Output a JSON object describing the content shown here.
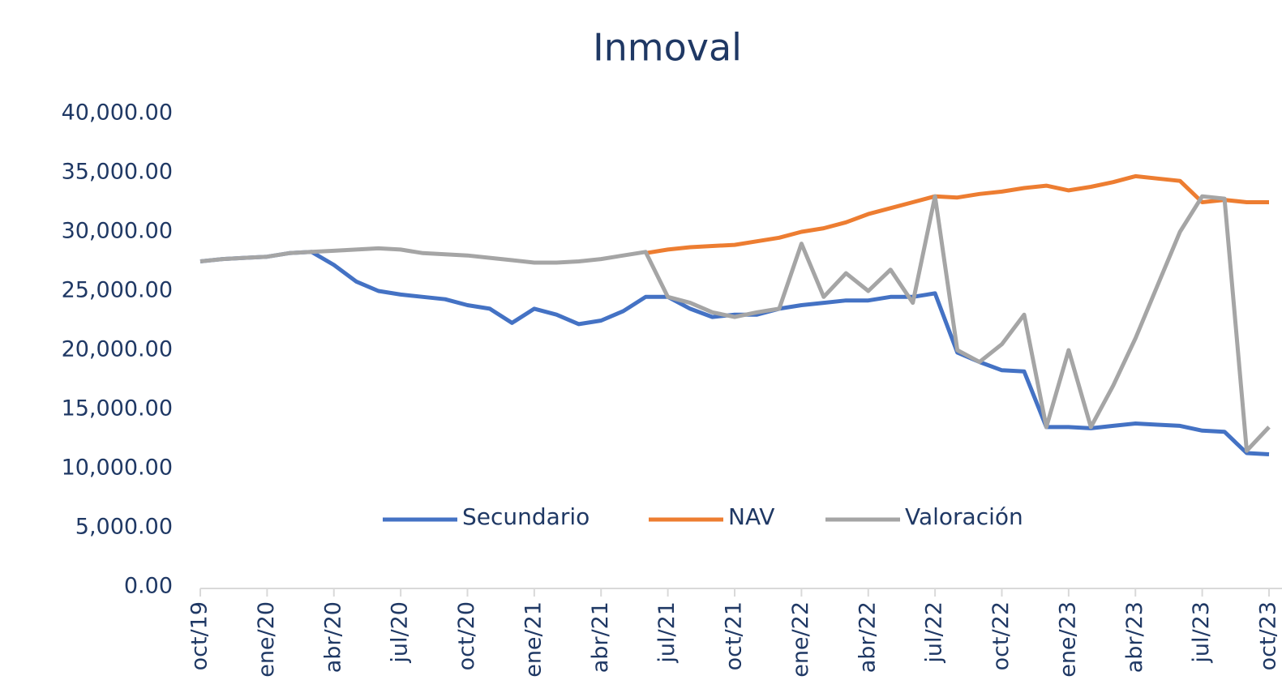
{
  "chart_data": {
    "type": "line",
    "title": "Inmoval",
    "categories": [
      "oct/19",
      null,
      null,
      "ene/20",
      null,
      null,
      "abr/20",
      null,
      null,
      "jul/20",
      null,
      null,
      "oct/20",
      null,
      null,
      "ene/21",
      null,
      null,
      "abr/21",
      null,
      null,
      "jul/21",
      null,
      null,
      "oct/21",
      null,
      null,
      "ene/22",
      null,
      null,
      "abr/22",
      null,
      null,
      "jul/22",
      null,
      null,
      "oct/22",
      null,
      null,
      "ene/23",
      null,
      null,
      "abr/23",
      null,
      null,
      "jul/23",
      null,
      null,
      "oct/23"
    ],
    "series": [
      {
        "name": "Secundario",
        "color": "#4472c4",
        "values": [
          27500,
          27700,
          27800,
          27900,
          28200,
          28300,
          27200,
          25800,
          25000,
          24700,
          24500,
          24300,
          23800,
          23500,
          22300,
          23500,
          23000,
          22200,
          22500,
          23300,
          24500,
          24500,
          23500,
          22800,
          23000,
          23000,
          23500,
          23800,
          24000,
          24200,
          24200,
          24500,
          24500,
          24800,
          19800,
          19000,
          18300,
          18200,
          13500,
          13500,
          13400,
          13600,
          13800,
          13700,
          13600,
          13200,
          13100,
          11300,
          11200
        ]
      },
      {
        "name": "NAV",
        "color": "#ed7d31",
        "values": [
          null,
          null,
          null,
          null,
          null,
          null,
          null,
          null,
          null,
          null,
          null,
          null,
          null,
          null,
          null,
          null,
          null,
          null,
          null,
          null,
          28200,
          28500,
          28700,
          28800,
          28900,
          29200,
          29500,
          30000,
          30300,
          30800,
          31500,
          32000,
          32500,
          33000,
          32900,
          33200,
          33400,
          33700,
          33900,
          33500,
          33800,
          34200,
          34700,
          34500,
          34300,
          32500,
          32700,
          32500,
          32500
        ]
      },
      {
        "name": "Valoración",
        "color": "#a5a5a5",
        "values": [
          27500,
          27700,
          27800,
          27900,
          28200,
          28300,
          28400,
          28500,
          28600,
          28500,
          28200,
          28100,
          28000,
          27800,
          27600,
          27400,
          27400,
          27500,
          27700,
          28000,
          28300,
          24500,
          24000,
          23200,
          22800,
          23200,
          23500,
          29000,
          24500,
          26500,
          25000,
          26800,
          24000,
          33000,
          20000,
          19000,
          20500,
          23000,
          13500,
          20000,
          13500,
          17000,
          21000,
          25500,
          30000,
          33000,
          32800,
          11500,
          13500
        ]
      }
    ],
    "ylim": [
      0,
      40000
    ],
    "yticks": [
      {
        "value": 0,
        "label": "0.00"
      },
      {
        "value": 5000,
        "label": "5,000.00"
      },
      {
        "value": 10000,
        "label": "10,000.00"
      },
      {
        "value": 15000,
        "label": "15,000.00"
      },
      {
        "value": 20000,
        "label": "20,000.00"
      },
      {
        "value": 25000,
        "label": "25,000.00"
      },
      {
        "value": 30000,
        "label": "30,000.00"
      },
      {
        "value": 35000,
        "label": "35,000.00"
      },
      {
        "value": 40000,
        "label": "40,000.00"
      }
    ],
    "grid": false
  }
}
